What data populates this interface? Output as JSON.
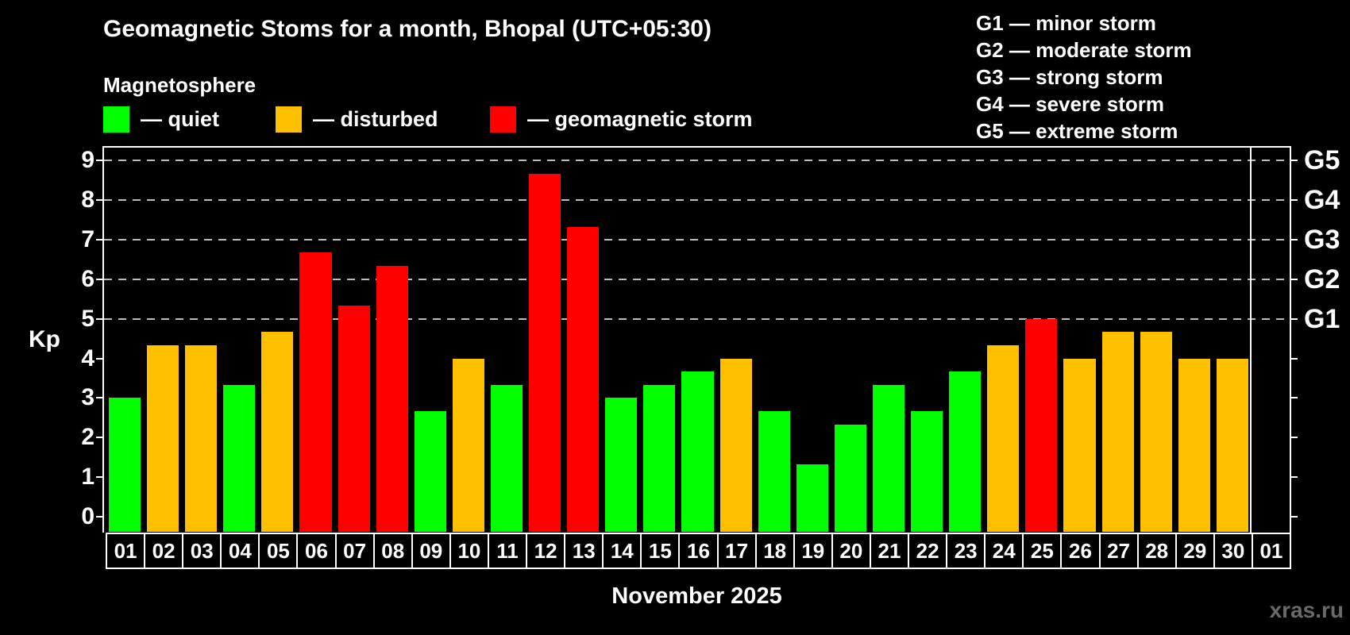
{
  "title": "Geomagnetic Stoms for a month, Bhopal (UTC+05:30)",
  "subtitle": "Magnetosphere",
  "legend": {
    "items": [
      {
        "label": "— quiet",
        "status": "quiet",
        "color": "#00ff00"
      },
      {
        "label": "— disturbed",
        "status": "disturbed",
        "color": "#ffc000"
      },
      {
        "label": "— geomagnetic storm",
        "status": "storm",
        "color": "#ff0000"
      }
    ]
  },
  "g_legend": {
    "items": [
      {
        "label": "G1 — minor storm"
      },
      {
        "label": "G2 — moderate storm"
      },
      {
        "label": "G3 — strong storm"
      },
      {
        "label": "G4 — severe storm"
      },
      {
        "label": "G5 — extreme storm"
      }
    ]
  },
  "watermark": "xras.ru",
  "chart_data": {
    "type": "bar",
    "title": "Geomagnetic Stoms for a month, Bhopal (UTC+05:30)",
    "xlabel": "November 2025",
    "ylabel": "Kp",
    "ylim": [
      0,
      9
    ],
    "y_ticks": [
      0,
      1,
      2,
      3,
      4,
      5,
      6,
      7,
      8,
      9
    ],
    "gridlines_kp": [
      5,
      6,
      7,
      8,
      9
    ],
    "right_axis_labels": [
      {
        "label": "G1",
        "kp": 5
      },
      {
        "label": "G2",
        "kp": 6
      },
      {
        "label": "G3",
        "kp": 7
      },
      {
        "label": "G4",
        "kp": 8
      },
      {
        "label": "G5",
        "kp": 9
      }
    ],
    "status_colors": {
      "quiet": "#00ff00",
      "disturbed": "#ffc000",
      "storm": "#ff0000"
    },
    "legend_position": "top",
    "grid": "dashed, Kp 5-9 only",
    "days": [
      {
        "day": "01",
        "kp": 3.0,
        "status": "quiet"
      },
      {
        "day": "02",
        "kp": 4.33,
        "status": "disturbed"
      },
      {
        "day": "03",
        "kp": 4.33,
        "status": "disturbed"
      },
      {
        "day": "04",
        "kp": 3.33,
        "status": "quiet"
      },
      {
        "day": "05",
        "kp": 4.67,
        "status": "disturbed"
      },
      {
        "day": "06",
        "kp": 6.67,
        "status": "storm"
      },
      {
        "day": "07",
        "kp": 5.33,
        "status": "storm"
      },
      {
        "day": "08",
        "kp": 6.33,
        "status": "storm"
      },
      {
        "day": "09",
        "kp": 2.67,
        "status": "quiet"
      },
      {
        "day": "10",
        "kp": 4.0,
        "status": "disturbed"
      },
      {
        "day": "11",
        "kp": 3.33,
        "status": "quiet"
      },
      {
        "day": "12",
        "kp": 8.67,
        "status": "storm"
      },
      {
        "day": "13",
        "kp": 7.33,
        "status": "storm"
      },
      {
        "day": "14",
        "kp": 3.0,
        "status": "quiet"
      },
      {
        "day": "15",
        "kp": 3.33,
        "status": "quiet"
      },
      {
        "day": "16",
        "kp": 3.67,
        "status": "quiet"
      },
      {
        "day": "17",
        "kp": 4.0,
        "status": "disturbed"
      },
      {
        "day": "18",
        "kp": 2.67,
        "status": "quiet"
      },
      {
        "day": "19",
        "kp": 1.33,
        "status": "quiet"
      },
      {
        "day": "20",
        "kp": 2.33,
        "status": "quiet"
      },
      {
        "day": "21",
        "kp": 3.33,
        "status": "quiet"
      },
      {
        "day": "22",
        "kp": 2.67,
        "status": "quiet"
      },
      {
        "day": "23",
        "kp": 3.67,
        "status": "quiet"
      },
      {
        "day": "24",
        "kp": 4.33,
        "status": "disturbed"
      },
      {
        "day": "25",
        "kp": 5.0,
        "status": "storm"
      },
      {
        "day": "26",
        "kp": 4.0,
        "status": "disturbed"
      },
      {
        "day": "27",
        "kp": 4.67,
        "status": "disturbed"
      },
      {
        "day": "28",
        "kp": 4.67,
        "status": "disturbed"
      },
      {
        "day": "29",
        "kp": 4.0,
        "status": "disturbed"
      },
      {
        "day": "30",
        "kp": 4.0,
        "status": "disturbed"
      },
      {
        "day": "01",
        "kp": null,
        "status": null
      }
    ]
  }
}
